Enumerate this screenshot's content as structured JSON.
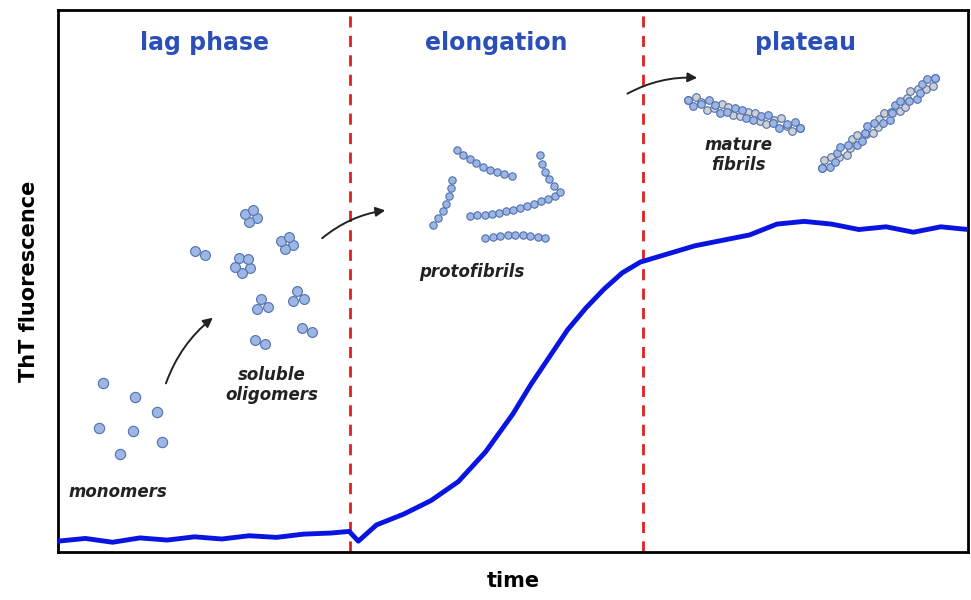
{
  "chart_data": {
    "type": "line",
    "x_label": "time",
    "y_label": "ThT fluorescence",
    "x": [
      0,
      3,
      6,
      9,
      12,
      15,
      18,
      21,
      24,
      27,
      30,
      32,
      33,
      35,
      38,
      41,
      44,
      47,
      50,
      52,
      54,
      56,
      58,
      60,
      62,
      64,
      66,
      68,
      70,
      73,
      76,
      79,
      82,
      85,
      88,
      91,
      94,
      97,
      100
    ],
    "values": [
      2.0,
      2.5,
      1.8,
      2.6,
      2.2,
      2.8,
      2.4,
      3.0,
      2.7,
      3.3,
      3.5,
      3.8,
      2.0,
      5.0,
      7.0,
      9.5,
      13.0,
      18.5,
      25.5,
      31.0,
      36.0,
      41.0,
      45.0,
      48.5,
      51.5,
      53.5,
      54.5,
      55.5,
      56.5,
      57.5,
      58.5,
      60.5,
      61.0,
      60.5,
      59.5,
      60.0,
      59.0,
      60.0,
      59.5
    ],
    "color": "#0a14e0",
    "xlim": [
      0,
      100
    ],
    "ylim": [
      0,
      100
    ],
    "tick_labels": false,
    "phases": [
      "lag phase",
      "elongation",
      "plateau"
    ],
    "phase_boundaries": [
      32.1,
      64.3
    ],
    "annotations": [
      "monomers",
      "soluble oligomers",
      "protofibrils",
      "mature fibrils"
    ]
  }
}
